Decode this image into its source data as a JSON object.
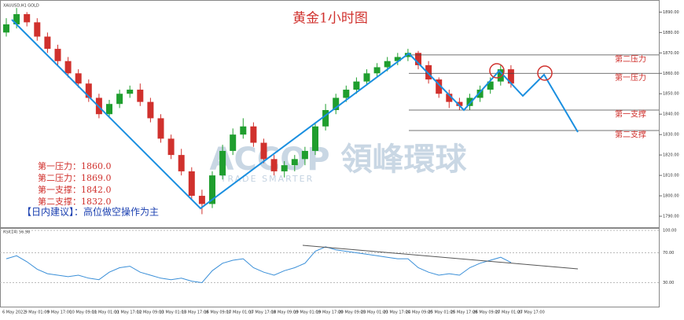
{
  "chart_data": [
    {
      "type": "candlestick",
      "title": "黄金1小时图",
      "symbol": "XAUUSD,H1  GOLD",
      "watermark": "ACCOP 領峰環球",
      "watermark_sub": "TRADE SMARTER",
      "up_color": "#1f9e2e",
      "down_color": "#d0312d",
      "open": [
        1880,
        1884,
        1889,
        1885,
        1878,
        1872,
        1866,
        1860,
        1855,
        1848,
        1840,
        1845,
        1850,
        1852,
        1846,
        1838,
        1828,
        1820,
        1812,
        1800,
        1796,
        1810,
        1822,
        1830,
        1834,
        1826,
        1818,
        1812,
        1815,
        1818,
        1822,
        1834,
        1842,
        1848,
        1852,
        1856,
        1860,
        1863,
        1866,
        1868,
        1870,
        1864,
        1857,
        1850,
        1846,
        1844,
        1848,
        1852,
        1856,
        1862
      ],
      "high": [
        1887,
        1892,
        1890,
        1887,
        1880,
        1874,
        1868,
        1862,
        1857,
        1850,
        1847,
        1852,
        1854,
        1855,
        1848,
        1840,
        1830,
        1823,
        1814,
        1803,
        1812,
        1825,
        1833,
        1838,
        1836,
        1828,
        1820,
        1817,
        1820,
        1824,
        1836,
        1845,
        1850,
        1854,
        1858,
        1862,
        1865,
        1868,
        1870,
        1872,
        1871,
        1866,
        1858,
        1852,
        1848,
        1850,
        1854,
        1858,
        1864,
        1864
      ],
      "low": [
        1878,
        1882,
        1883,
        1876,
        1870,
        1864,
        1858,
        1853,
        1846,
        1838,
        1838,
        1843,
        1848,
        1844,
        1836,
        1826,
        1818,
        1810,
        1798,
        1791,
        1794,
        1808,
        1820,
        1828,
        1824,
        1816,
        1810,
        1809,
        1812,
        1815,
        1820,
        1832,
        1840,
        1846,
        1850,
        1854,
        1858,
        1861,
        1864,
        1866,
        1862,
        1855,
        1848,
        1843,
        1842,
        1842,
        1846,
        1850,
        1854,
        1853
      ],
      "close": [
        1884,
        1889,
        1885,
        1878,
        1872,
        1866,
        1860,
        1855,
        1848,
        1840,
        1845,
        1850,
        1852,
        1846,
        1838,
        1828,
        1820,
        1812,
        1800,
        1796,
        1810,
        1822,
        1830,
        1834,
        1826,
        1818,
        1812,
        1815,
        1818,
        1822,
        1834,
        1842,
        1848,
        1852,
        1856,
        1860,
        1863,
        1866,
        1868,
        1870,
        1864,
        1857,
        1850,
        1846,
        1844,
        1848,
        1852,
        1856,
        1862,
        1855
      ],
      "ylim": [
        1785,
        1894
      ],
      "yticks": [
        {
          "value": 1790,
          "label": "1790.00"
        },
        {
          "value": 1800,
          "label": "1800.00"
        },
        {
          "value": 1810,
          "label": "1810.00"
        },
        {
          "value": 1820,
          "label": "1820.00"
        },
        {
          "value": 1830,
          "label": "1830.00"
        },
        {
          "value": 1840,
          "label": "1840.00"
        },
        {
          "value": 1850,
          "label": "1850.00"
        },
        {
          "value": 1860,
          "label": "1860.00"
        },
        {
          "value": 1870,
          "label": "1870.00"
        },
        {
          "value": 1880,
          "label": "1880.00"
        },
        {
          "value": 1890,
          "label": "1890.00"
        }
      ],
      "levels": [
        {
          "name": "第二压力",
          "value": 1869
        },
        {
          "name": "第一压力",
          "value": 1860
        },
        {
          "name": "第一支撑",
          "value": 1842
        },
        {
          "name": "第二支撑",
          "value": 1832
        }
      ],
      "summary_lines": [
        "第一压力：1860.0",
        "第二压力：1869.0",
        "第一支撑：1842.0",
        "第二支撑：1832.0"
      ],
      "advice": "【日内建议】：高位做空操作为主",
      "x_tick_labels": [
        "6 May 2022",
        "9 May 01:00",
        "9 May 17:00",
        "10 May 09:00",
        "11 May 01:00",
        "11 May 17:00",
        "12 May 09:00",
        "13 May 01:00",
        "13 May 17:00",
        "16 May 09:00",
        "17 May 01:00",
        "17 May 17:00",
        "18 May 09:00",
        "19 May 01:00",
        "19 May 17:00",
        "20 May 09:00",
        "23 May 01:00",
        "23 May 17:00",
        "24 May 09:00",
        "25 May 01:00",
        "25 May 17:00",
        "26 May 09:00",
        "27 May 01:00",
        "27 May 17:00"
      ]
    },
    {
      "type": "line",
      "title": "RSI(14) 56.98",
      "color": "#3a8fd8",
      "values": [
        62,
        66,
        58,
        48,
        42,
        40,
        38,
        40,
        36,
        34,
        44,
        50,
        52,
        44,
        40,
        36,
        34,
        36,
        32,
        30,
        46,
        56,
        60,
        62,
        50,
        44,
        40,
        46,
        50,
        56,
        72,
        78,
        74,
        72,
        70,
        68,
        66,
        64,
        62,
        62,
        50,
        44,
        40,
        42,
        40,
        50,
        56,
        60,
        64,
        57
      ],
      "ylim": [
        0,
        100
      ],
      "yticks": [
        {
          "value": 30,
          "label": "30.00"
        },
        {
          "value": 70,
          "label": "70.00"
        },
        {
          "value": 100,
          "label": "100.00"
        }
      ]
    }
  ]
}
